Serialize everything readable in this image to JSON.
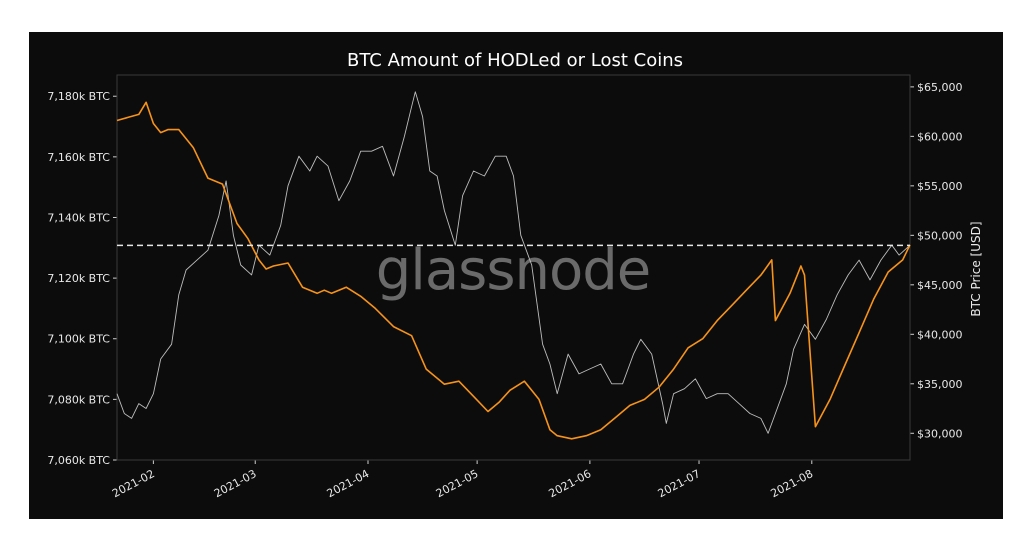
{
  "chart_data": {
    "type": "line",
    "title": "BTC Amount of HODLed or Lost Coins",
    "watermark": "glassnode",
    "xlabel": "",
    "ylabel_left": "",
    "ylabel_right": "BTC Price [USD]",
    "x_range": [
      "2021-01-22",
      "2021-08-28"
    ],
    "x_ticks": [
      "2021-02",
      "2021-03",
      "2021-04",
      "2021-05",
      "2021-06",
      "2021-07",
      "2021-08"
    ],
    "y_left": {
      "ylim": [
        7060000,
        7187000
      ],
      "ticks": [
        7060000,
        7080000,
        7100000,
        7120000,
        7140000,
        7160000,
        7180000
      ],
      "tick_labels": [
        "7,060k BTC",
        "7,080k BTC",
        "7,100k BTC",
        "7,120k BTC",
        "7,140k BTC",
        "7,160k BTC",
        "7,180k BTC"
      ]
    },
    "y_right": {
      "ylim": [
        27300,
        66200
      ],
      "ticks": [
        30000,
        35000,
        40000,
        45000,
        50000,
        55000,
        60000,
        65000
      ],
      "tick_labels": [
        "$30,000",
        "$35,000",
        "$40,000",
        "$45,000",
        "$50,000",
        "$55,000",
        "$60,000",
        "$65,000"
      ]
    },
    "grid": false,
    "reference_line": {
      "axis": "left",
      "value": 7130800,
      "style": "dashed"
    },
    "series": [
      {
        "axis": "left",
        "color": "#f7931a",
        "x": [
          "2021-01-22",
          "2021-01-25",
          "2021-01-28",
          "2021-01-30",
          "2021-02-01",
          "2021-02-03",
          "2021-02-05",
          "2021-02-08",
          "2021-02-12",
          "2021-02-16",
          "2021-02-20",
          "2021-02-24",
          "2021-02-27",
          "2021-03-02",
          "2021-03-04",
          "2021-03-06",
          "2021-03-10",
          "2021-03-14",
          "2021-03-18",
          "2021-03-20",
          "2021-03-22",
          "2021-03-26",
          "2021-03-30",
          "2021-04-03",
          "2021-04-08",
          "2021-04-13",
          "2021-04-17",
          "2021-04-22",
          "2021-04-26",
          "2021-04-30",
          "2021-05-04",
          "2021-05-07",
          "2021-05-10",
          "2021-05-14",
          "2021-05-18",
          "2021-05-21",
          "2021-05-23",
          "2021-05-27",
          "2021-05-31",
          "2021-06-04",
          "2021-06-08",
          "2021-06-12",
          "2021-06-16",
          "2021-06-20",
          "2021-06-24",
          "2021-06-28",
          "2021-07-02",
          "2021-07-06",
          "2021-07-10",
          "2021-07-14",
          "2021-07-18",
          "2021-07-21",
          "2021-07-22",
          "2021-07-26",
          "2021-07-29",
          "2021-07-30",
          "2021-08-02",
          "2021-08-06",
          "2021-08-10",
          "2021-08-14",
          "2021-08-18",
          "2021-08-22",
          "2021-08-26",
          "2021-08-28"
        ],
        "values": [
          7172000,
          7173000,
          7174000,
          7178000,
          7171000,
          7168000,
          7169000,
          7169000,
          7163000,
          7153000,
          7151000,
          7138000,
          7133000,
          7126000,
          7123000,
          7124000,
          7125000,
          7117000,
          7115000,
          7116000,
          7115000,
          7117000,
          7114000,
          7110000,
          7104000,
          7101000,
          7090000,
          7085000,
          7086000,
          7081000,
          7076000,
          7079000,
          7083000,
          7086000,
          7080000,
          7070000,
          7068000,
          7067000,
          7068000,
          7070000,
          7074000,
          7078000,
          7080000,
          7084000,
          7090000,
          7097000,
          7100000,
          7106000,
          7111000,
          7116000,
          7121000,
          7126000,
          7106000,
          7115000,
          7124000,
          7121000,
          7071000,
          7080000,
          7091000,
          7102000,
          7113000,
          7122000,
          7126000,
          7131000
        ]
      },
      {
        "axis": "right",
        "color": "#bdbdbd",
        "x": [
          "2021-01-22",
          "2021-01-24",
          "2021-01-26",
          "2021-01-28",
          "2021-01-30",
          "2021-02-01",
          "2021-02-03",
          "2021-02-06",
          "2021-02-08",
          "2021-02-10",
          "2021-02-13",
          "2021-02-16",
          "2021-02-19",
          "2021-02-21",
          "2021-02-23",
          "2021-02-25",
          "2021-02-28",
          "2021-03-02",
          "2021-03-05",
          "2021-03-08",
          "2021-03-10",
          "2021-03-13",
          "2021-03-16",
          "2021-03-18",
          "2021-03-21",
          "2021-03-24",
          "2021-03-27",
          "2021-03-30",
          "2021-04-02",
          "2021-04-05",
          "2021-04-08",
          "2021-04-11",
          "2021-04-13",
          "2021-04-14",
          "2021-04-16",
          "2021-04-18",
          "2021-04-20",
          "2021-04-22",
          "2021-04-25",
          "2021-04-27",
          "2021-04-30",
          "2021-05-03",
          "2021-05-06",
          "2021-05-09",
          "2021-05-11",
          "2021-05-13",
          "2021-05-16",
          "2021-05-19",
          "2021-05-21",
          "2021-05-23",
          "2021-05-26",
          "2021-05-29",
          "2021-06-01",
          "2021-06-04",
          "2021-06-07",
          "2021-06-10",
          "2021-06-13",
          "2021-06-15",
          "2021-06-18",
          "2021-06-21",
          "2021-06-22",
          "2021-06-24",
          "2021-06-27",
          "2021-06-30",
          "2021-07-03",
          "2021-07-06",
          "2021-07-09",
          "2021-07-12",
          "2021-07-15",
          "2021-07-18",
          "2021-07-20",
          "2021-07-22",
          "2021-07-25",
          "2021-07-27",
          "2021-07-30",
          "2021-08-02",
          "2021-08-05",
          "2021-08-08",
          "2021-08-11",
          "2021-08-14",
          "2021-08-17",
          "2021-08-20",
          "2021-08-23",
          "2021-08-25",
          "2021-08-28"
        ],
        "values": [
          34000,
          32000,
          31500,
          33000,
          32500,
          34000,
          37500,
          39000,
          44000,
          46500,
          47500,
          48500,
          52000,
          55500,
          50000,
          47000,
          46000,
          49000,
          48000,
          51000,
          55000,
          58000,
          56500,
          58000,
          57000,
          53500,
          55500,
          58500,
          58500,
          59000,
          56000,
          60000,
          63000,
          64500,
          62000,
          56500,
          56000,
          52500,
          49000,
          54000,
          56500,
          56000,
          58000,
          58000,
          56000,
          50000,
          47000,
          39000,
          37000,
          34000,
          38000,
          36000,
          36500,
          37000,
          35000,
          35000,
          38000,
          39500,
          38000,
          33000,
          31000,
          34000,
          34500,
          35500,
          33500,
          34000,
          34000,
          33000,
          32000,
          31500,
          30000,
          32000,
          35000,
          38500,
          41000,
          39500,
          41500,
          44000,
          46000,
          47500,
          45500,
          47500,
          49000,
          48000,
          49000
        ]
      }
    ]
  }
}
